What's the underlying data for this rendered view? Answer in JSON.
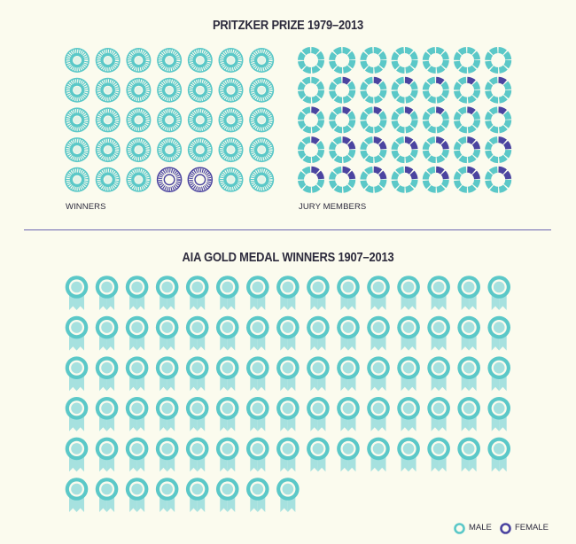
{
  "pritzker": {
    "title": "PRITZKER PRIZE 1979–2013",
    "winners_label": "WINNERS",
    "jury_label": "JURY MEMBERS",
    "winners": {
      "columns": 7,
      "rows": 5,
      "female_positions": [
        [
          3,
          4
        ],
        [
          4,
          4
        ]
      ]
    },
    "jury": {
      "columns": 7,
      "rows": 5,
      "segments_per_donut": 8,
      "female_segments": [
        [
          0,
          0,
          0,
          0,
          0,
          0,
          0
        ],
        [
          0,
          1,
          1,
          1,
          1,
          1,
          1
        ],
        [
          1,
          1,
          1,
          1,
          1,
          1,
          1
        ],
        [
          1,
          2,
          2,
          2,
          2,
          2,
          2
        ],
        [
          2,
          2,
          2,
          2,
          2,
          2,
          2
        ]
      ]
    }
  },
  "aia": {
    "title": "AIA GOLD MEDAL WINNERS 1907–2013",
    "columns": 15,
    "total_medals": 83,
    "female_count": 0
  },
  "legend": {
    "male": "MALE",
    "female": "FEMALE"
  },
  "colors": {
    "male": "#5bc8c8",
    "male_light": "#a6e1df",
    "female": "#4b44a0",
    "background": "#fbfbee",
    "text": "#2c2a3c",
    "divider": "#6a64b0"
  },
  "icons": {
    "winner": "award-rosette-icon",
    "jury": "jury-donut-icon",
    "medal": "gold-medal-icon"
  }
}
